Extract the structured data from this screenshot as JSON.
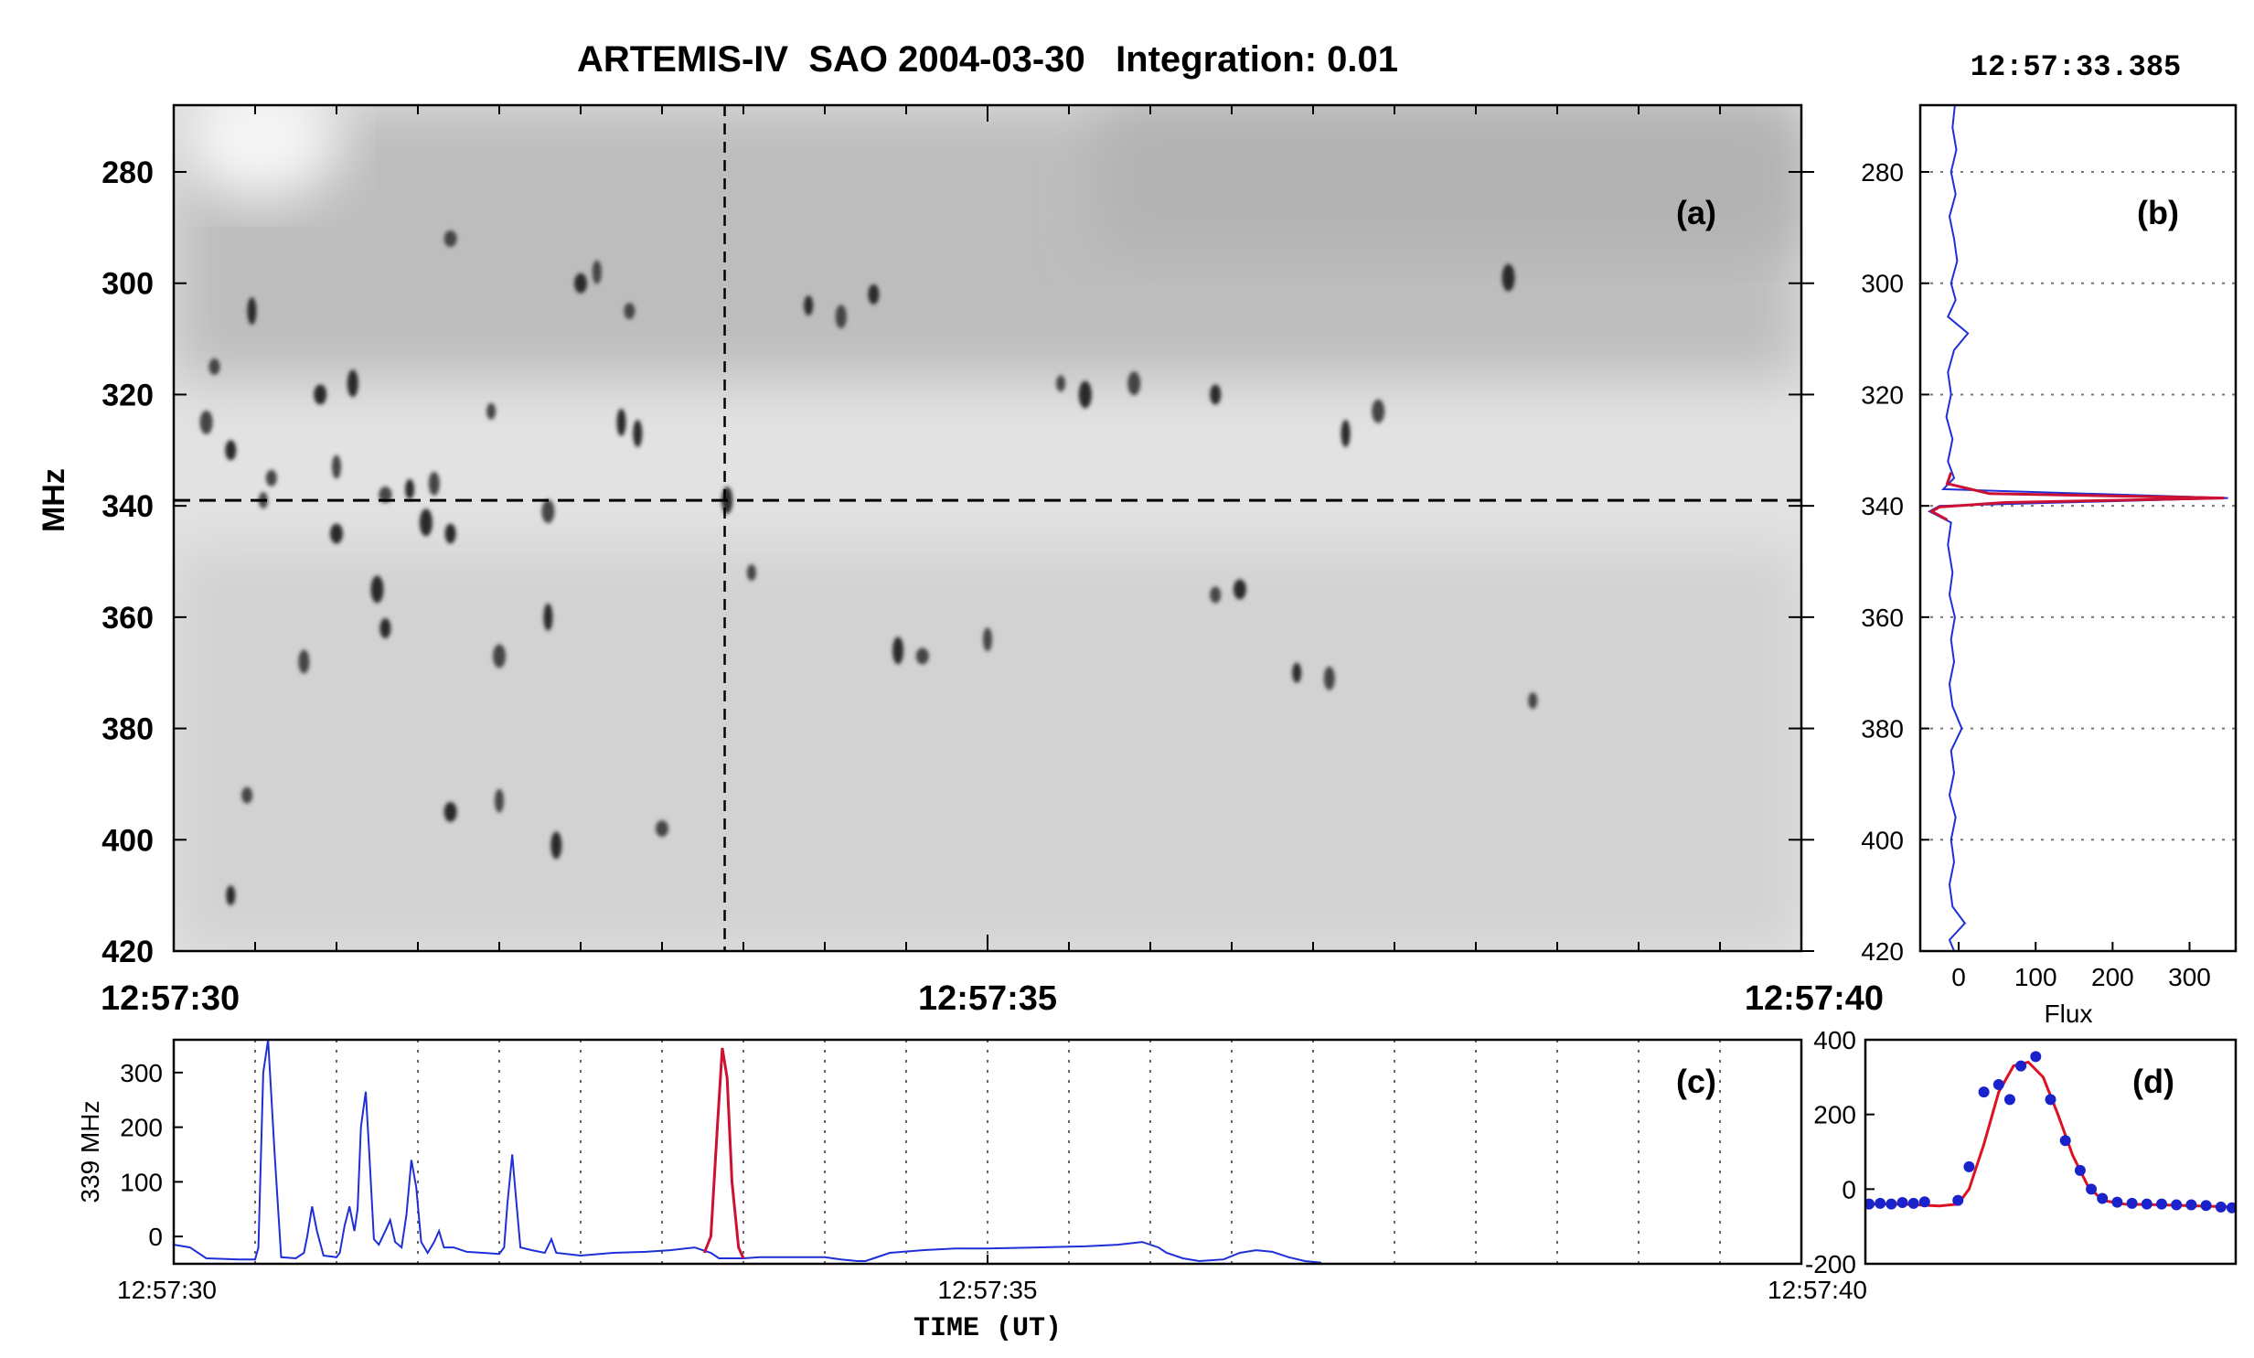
{
  "figure": {
    "title": "ARTEMIS-IV  SAO 2004-03-30   Integration: 0.01",
    "timestamp": "12:57:33.385"
  },
  "chart_data": [
    {
      "panel": "(a)",
      "type": "heatmap",
      "ylabel": "MHz",
      "y_reversed": true,
      "ylim": [
        268,
        420
      ],
      "yticks": [
        280,
        300,
        320,
        340,
        360,
        380,
        400,
        420
      ],
      "xlim": [
        0,
        10
      ],
      "xticks": [
        {
          "t": 0,
          "label": "12:57:30"
        },
        {
          "t": 5,
          "label": "12:57:35"
        },
        {
          "t": 10,
          "label": "12:57:40"
        }
      ],
      "crosshair": {
        "t": 3.385,
        "freq": 339
      },
      "colormap": "grayscale (dark = high flux)",
      "spikes": [
        {
          "t": 0.55,
          "f": 339
        },
        {
          "t": 0.35,
          "f": 330
        },
        {
          "t": 0.2,
          "f": 325
        },
        {
          "t": 0.48,
          "f": 305
        },
        {
          "t": 0.6,
          "f": 335
        },
        {
          "t": 0.9,
          "f": 320
        },
        {
          "t": 1.0,
          "f": 333
        },
        {
          "t": 1.1,
          "f": 318
        },
        {
          "t": 1.3,
          "f": 338
        },
        {
          "t": 1.45,
          "f": 337
        },
        {
          "t": 1.6,
          "f": 336
        },
        {
          "t": 1.55,
          "f": 343
        },
        {
          "t": 1.95,
          "f": 323
        },
        {
          "t": 1.7,
          "f": 345
        },
        {
          "t": 2.3,
          "f": 341
        },
        {
          "t": 2.85,
          "f": 327
        },
        {
          "t": 2.8,
          "f": 305
        },
        {
          "t": 2.5,
          "f": 300
        },
        {
          "t": 2.6,
          "f": 298
        },
        {
          "t": 3.4,
          "f": 339
        },
        {
          "t": 1.7,
          "f": 292
        },
        {
          "t": 3.9,
          "f": 304
        },
        {
          "t": 4.1,
          "f": 306
        },
        {
          "t": 5.6,
          "f": 320
        },
        {
          "t": 5.45,
          "f": 318
        },
        {
          "t": 6.4,
          "f": 320
        },
        {
          "t": 7.4,
          "f": 323
        },
        {
          "t": 7.2,
          "f": 327
        },
        {
          "t": 6.4,
          "f": 356
        },
        {
          "t": 6.55,
          "f": 355
        },
        {
          "t": 5.0,
          "f": 364
        },
        {
          "t": 4.45,
          "f": 366
        },
        {
          "t": 4.6,
          "f": 367
        },
        {
          "t": 6.9,
          "f": 370
        },
        {
          "t": 7.1,
          "f": 371
        },
        {
          "t": 8.2,
          "f": 299
        },
        {
          "t": 8.35,
          "f": 375
        },
        {
          "t": 1.3,
          "f": 362
        },
        {
          "t": 2.0,
          "f": 367
        },
        {
          "t": 2.3,
          "f": 360
        },
        {
          "t": 0.45,
          "f": 392
        },
        {
          "t": 1.7,
          "f": 395
        },
        {
          "t": 2.0,
          "f": 393
        },
        {
          "t": 2.35,
          "f": 401
        },
        {
          "t": 3.0,
          "f": 398
        },
        {
          "t": 0.35,
          "f": 410
        },
        {
          "t": 0.8,
          "f": 368
        },
        {
          "t": 1.25,
          "f": 355
        },
        {
          "t": 3.55,
          "f": 352
        },
        {
          "t": 4.3,
          "f": 302
        },
        {
          "t": 5.9,
          "f": 318
        },
        {
          "t": 2.75,
          "f": 325
        },
        {
          "t": 0.25,
          "f": 315
        },
        {
          "t": 1.0,
          "f": 345
        }
      ]
    },
    {
      "panel": "(b)",
      "type": "line",
      "xlabel": "Flux",
      "xlim": [
        -50,
        360
      ],
      "xticks": [
        0,
        100,
        200,
        300
      ],
      "ylim": [
        268,
        420
      ],
      "yticks": [
        280,
        300,
        320,
        340,
        360,
        380,
        400,
        420
      ],
      "grid": "dotted horizontal",
      "series": [
        {
          "color": "#1f2fd8",
          "points": [
            [
              -5,
              268
            ],
            [
              -8,
              272
            ],
            [
              -3,
              276
            ],
            [
              -10,
              280
            ],
            [
              -4,
              284
            ],
            [
              -12,
              288
            ],
            [
              -6,
              292
            ],
            [
              -2,
              296
            ],
            [
              -10,
              300
            ],
            [
              -4,
              303
            ],
            [
              -14,
              306
            ],
            [
              12,
              309
            ],
            [
              -6,
              312
            ],
            [
              -14,
              316
            ],
            [
              -10,
              320
            ],
            [
              -16,
              324
            ],
            [
              -8,
              328
            ],
            [
              -14,
              332
            ],
            [
              -6,
              335
            ],
            [
              -20,
              337
            ],
            [
              350,
              338.6
            ],
            [
              -25,
              340
            ],
            [
              -38,
              341
            ],
            [
              -10,
              343
            ],
            [
              -14,
              347
            ],
            [
              -8,
              352
            ],
            [
              -12,
              356
            ],
            [
              -5,
              360
            ],
            [
              -10,
              364
            ],
            [
              -6,
              368
            ],
            [
              -12,
              372
            ],
            [
              -8,
              376
            ],
            [
              4,
              380
            ],
            [
              -10,
              384
            ],
            [
              -6,
              388
            ],
            [
              -12,
              392
            ],
            [
              -4,
              396
            ],
            [
              -10,
              400
            ],
            [
              -6,
              404
            ],
            [
              -12,
              408
            ],
            [
              -8,
              412
            ],
            [
              8,
              415
            ],
            [
              -12,
              418
            ],
            [
              -6,
              420
            ]
          ]
        },
        {
          "color": "#cc1133",
          "points": [
            [
              -10,
              334
            ],
            [
              -15,
              336
            ],
            [
              40,
              337.8
            ],
            [
              345,
              338.6
            ],
            [
              60,
              339.4
            ],
            [
              -25,
              340.2
            ],
            [
              -35,
              341
            ],
            [
              -15,
              342.5
            ]
          ]
        }
      ]
    },
    {
      "panel": "(c)",
      "type": "line",
      "ylabel": "339 MHz",
      "xlabel": "TIME (UT)",
      "xlim": [
        0,
        10
      ],
      "ylim": [
        -50,
        360
      ],
      "yticks": [
        0,
        100,
        200,
        300
      ],
      "xticks": [
        {
          "t": 0,
          "label": "12:57:30"
        },
        {
          "t": 5,
          "label": "12:57:35"
        },
        {
          "t": 10,
          "label": "12:57:40"
        }
      ],
      "grid": "dotted vertical",
      "series": [
        {
          "color": "#1f2fd8",
          "points": [
            [
              0,
              -15
            ],
            [
              0.1,
              -20
            ],
            [
              0.2,
              -40
            ],
            [
              0.4,
              -42
            ],
            [
              0.5,
              -42
            ],
            [
              0.52,
              -20
            ],
            [
              0.55,
              300
            ],
            [
              0.58,
              360
            ],
            [
              0.62,
              150
            ],
            [
              0.66,
              -38
            ],
            [
              0.75,
              -40
            ],
            [
              0.8,
              -30
            ],
            [
              0.82,
              0
            ],
            [
              0.85,
              55
            ],
            [
              0.88,
              10
            ],
            [
              0.92,
              -35
            ],
            [
              1.0,
              -38
            ],
            [
              1.02,
              -30
            ],
            [
              1.05,
              20
            ],
            [
              1.08,
              55
            ],
            [
              1.11,
              10
            ],
            [
              1.13,
              50
            ],
            [
              1.15,
              200
            ],
            [
              1.18,
              265
            ],
            [
              1.2,
              160
            ],
            [
              1.23,
              -5
            ],
            [
              1.26,
              -15
            ],
            [
              1.3,
              10
            ],
            [
              1.33,
              30
            ],
            [
              1.36,
              -10
            ],
            [
              1.4,
              -20
            ],
            [
              1.43,
              40
            ],
            [
              1.46,
              140
            ],
            [
              1.49,
              90
            ],
            [
              1.52,
              -10
            ],
            [
              1.56,
              -30
            ],
            [
              1.6,
              -10
            ],
            [
              1.63,
              10
            ],
            [
              1.66,
              -20
            ],
            [
              1.72,
              -20
            ],
            [
              1.8,
              -28
            ],
            [
              1.9,
              -30
            ],
            [
              2.0,
              -32
            ],
            [
              2.03,
              -20
            ],
            [
              2.05,
              60
            ],
            [
              2.08,
              150
            ],
            [
              2.1,
              80
            ],
            [
              2.13,
              -20
            ],
            [
              2.2,
              -25
            ],
            [
              2.28,
              -30
            ],
            [
              2.32,
              -5
            ],
            [
              2.35,
              -30
            ],
            [
              2.5,
              -35
            ],
            [
              2.7,
              -30
            ],
            [
              2.9,
              -28
            ],
            [
              3.05,
              -25
            ],
            [
              3.2,
              -20
            ],
            [
              3.3,
              -30
            ],
            [
              3.35,
              -40
            ],
            [
              3.5,
              -40
            ],
            [
              3.6,
              -38
            ],
            [
              3.8,
              -38
            ],
            [
              4.0,
              -38
            ],
            [
              4.1,
              -42
            ],
            [
              4.2,
              -45
            ],
            [
              4.25,
              -45
            ],
            [
              4.3,
              -40
            ],
            [
              4.4,
              -30
            ],
            [
              4.6,
              -25
            ],
            [
              4.8,
              -22
            ],
            [
              5.0,
              -22
            ],
            [
              5.3,
              -20
            ],
            [
              5.6,
              -18
            ],
            [
              5.8,
              -15
            ],
            [
              5.95,
              -10
            ],
            [
              6.05,
              -20
            ],
            [
              6.1,
              -30
            ],
            [
              6.2,
              -40
            ],
            [
              6.3,
              -45
            ],
            [
              6.45,
              -42
            ],
            [
              6.55,
              -30
            ],
            [
              6.65,
              -25
            ],
            [
              6.75,
              -28
            ],
            [
              6.85,
              -38
            ],
            [
              6.95,
              -45
            ],
            [
              7.05,
              -48
            ]
          ]
        },
        {
          "color": "#cc1133",
          "points": [
            [
              3.26,
              -30
            ],
            [
              3.3,
              0
            ],
            [
              3.34,
              200
            ],
            [
              3.37,
              345
            ],
            [
              3.4,
              290
            ],
            [
              3.43,
              100
            ],
            [
              3.47,
              -20
            ],
            [
              3.5,
              -40
            ]
          ]
        }
      ]
    },
    {
      "panel": "(d)",
      "type": "scatter",
      "ylim": [
        -200,
        400
      ],
      "yticks": [
        -200,
        0,
        200,
        400
      ],
      "xlim": [
        0,
        1
      ],
      "series": [
        {
          "color": "#1a22cc",
          "kind": "scatter",
          "points": [
            [
              0.01,
              -40
            ],
            [
              0.04,
              -38
            ],
            [
              0.07,
              -40
            ],
            [
              0.1,
              -36
            ],
            [
              0.13,
              -38
            ],
            [
              0.16,
              -34
            ],
            [
              0.25,
              -30
            ],
            [
              0.28,
              60
            ],
            [
              0.32,
              260
            ],
            [
              0.36,
              280
            ],
            [
              0.39,
              240
            ],
            [
              0.42,
              330
            ],
            [
              0.46,
              355
            ],
            [
              0.5,
              240
            ],
            [
              0.54,
              130
            ],
            [
              0.58,
              50
            ],
            [
              0.61,
              0
            ],
            [
              0.64,
              -25
            ],
            [
              0.68,
              -35
            ],
            [
              0.72,
              -38
            ],
            [
              0.76,
              -40
            ],
            [
              0.8,
              -40
            ],
            [
              0.84,
              -42
            ],
            [
              0.88,
              -42
            ],
            [
              0.92,
              -44
            ],
            [
              0.96,
              -48
            ],
            [
              0.99,
              -50
            ]
          ]
        },
        {
          "color": "#dd1122",
          "kind": "line",
          "points": [
            [
              0,
              -40
            ],
            [
              0.1,
              -40
            ],
            [
              0.2,
              -45
            ],
            [
              0.25,
              -40
            ],
            [
              0.28,
              0
            ],
            [
              0.32,
              120
            ],
            [
              0.36,
              260
            ],
            [
              0.4,
              330
            ],
            [
              0.44,
              340
            ],
            [
              0.48,
              300
            ],
            [
              0.52,
              200
            ],
            [
              0.56,
              90
            ],
            [
              0.6,
              10
            ],
            [
              0.64,
              -30
            ],
            [
              0.7,
              -40
            ],
            [
              0.8,
              -42
            ],
            [
              0.9,
              -45
            ],
            [
              1,
              -48
            ]
          ]
        }
      ]
    }
  ]
}
